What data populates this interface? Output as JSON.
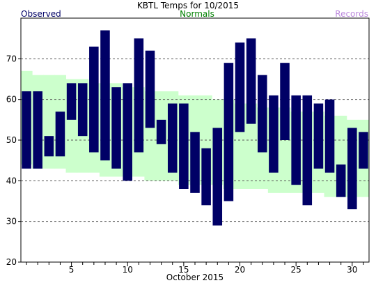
{
  "chart_data": {
    "type": "bar",
    "title": "KBTL Temps for  10/2015",
    "xlabel": "October 2015",
    "ylabel": "",
    "legend": [
      {
        "name": "Observed",
        "color": "#000066",
        "placement": "top-left"
      },
      {
        "name": "Normals",
        "color": "#008000",
        "placement": "top-center"
      },
      {
        "name": "Records",
        "color": "#bb88dd",
        "placement": "top-right"
      }
    ],
    "xlim": [
      0.5,
      31.5
    ],
    "ylim": [
      20,
      80
    ],
    "x_ticks_labeled": [
      5,
      10,
      15,
      20,
      25,
      30
    ],
    "y_ticks_labeled": [
      20,
      30,
      40,
      50,
      60,
      70
    ],
    "gridlines_y": [
      30,
      40,
      50,
      60,
      70
    ],
    "colors": {
      "observed": "#000066",
      "normals": "#ccffcc",
      "normals_label": "#008000",
      "records_label": "#bb88dd",
      "axis": "#000000",
      "grid": "#555555"
    },
    "normals": [
      {
        "day": 1,
        "low": 44,
        "high": 67
      },
      {
        "day": 2,
        "low": 43,
        "high": 66
      },
      {
        "day": 3,
        "low": 43,
        "high": 66
      },
      {
        "day": 4,
        "low": 43,
        "high": 66
      },
      {
        "day": 5,
        "low": 42,
        "high": 65
      },
      {
        "day": 6,
        "low": 42,
        "high": 65
      },
      {
        "day": 7,
        "low": 42,
        "high": 64
      },
      {
        "day": 8,
        "low": 41,
        "high": 64
      },
      {
        "day": 9,
        "low": 41,
        "high": 64
      },
      {
        "day": 10,
        "low": 41,
        "high": 63
      },
      {
        "day": 11,
        "low": 41,
        "high": 63
      },
      {
        "day": 12,
        "low": 40,
        "high": 62
      },
      {
        "day": 13,
        "low": 40,
        "high": 62
      },
      {
        "day": 14,
        "low": 40,
        "high": 62
      },
      {
        "day": 15,
        "low": 39,
        "high": 61
      },
      {
        "day": 16,
        "low": 39,
        "high": 61
      },
      {
        "day": 17,
        "low": 39,
        "high": 61
      },
      {
        "day": 18,
        "low": 39,
        "high": 60
      },
      {
        "day": 19,
        "low": 38,
        "high": 60
      },
      {
        "day": 20,
        "low": 38,
        "high": 59
      },
      {
        "day": 21,
        "low": 38,
        "high": 59
      },
      {
        "day": 22,
        "low": 38,
        "high": 58
      },
      {
        "day": 23,
        "low": 37,
        "high": 58
      },
      {
        "day": 24,
        "low": 37,
        "high": 58
      },
      {
        "day": 25,
        "low": 37,
        "high": 57
      },
      {
        "day": 26,
        "low": 37,
        "high": 57
      },
      {
        "day": 27,
        "low": 37,
        "high": 57
      },
      {
        "day": 28,
        "low": 36,
        "high": 56
      },
      {
        "day": 29,
        "low": 36,
        "high": 56
      },
      {
        "day": 30,
        "low": 36,
        "high": 55
      },
      {
        "day": 31,
        "low": 36,
        "high": 55
      }
    ],
    "series": [
      {
        "name": "Observed",
        "days": [
          1,
          2,
          3,
          4,
          5,
          6,
          7,
          8,
          9,
          10,
          11,
          12,
          13,
          14,
          15,
          16,
          17,
          18,
          19,
          20,
          21,
          22,
          23,
          24,
          25,
          26,
          27,
          28,
          29,
          30,
          31
        ],
        "lows": [
          43,
          43,
          46,
          46,
          55,
          51,
          47,
          45,
          43,
          40,
          47,
          53,
          49,
          42,
          38,
          37,
          34,
          29,
          35,
          52,
          54,
          47,
          42,
          50,
          39,
          34,
          43,
          42,
          36,
          33,
          43
        ],
        "highs": [
          62,
          62,
          51,
          57,
          64,
          64,
          73,
          77,
          63,
          64,
          75,
          72,
          55,
          59,
          59,
          52,
          48,
          53,
          69,
          74,
          75,
          66,
          61,
          69,
          61,
          61,
          59,
          60,
          44,
          53,
          52
        ]
      }
    ]
  }
}
